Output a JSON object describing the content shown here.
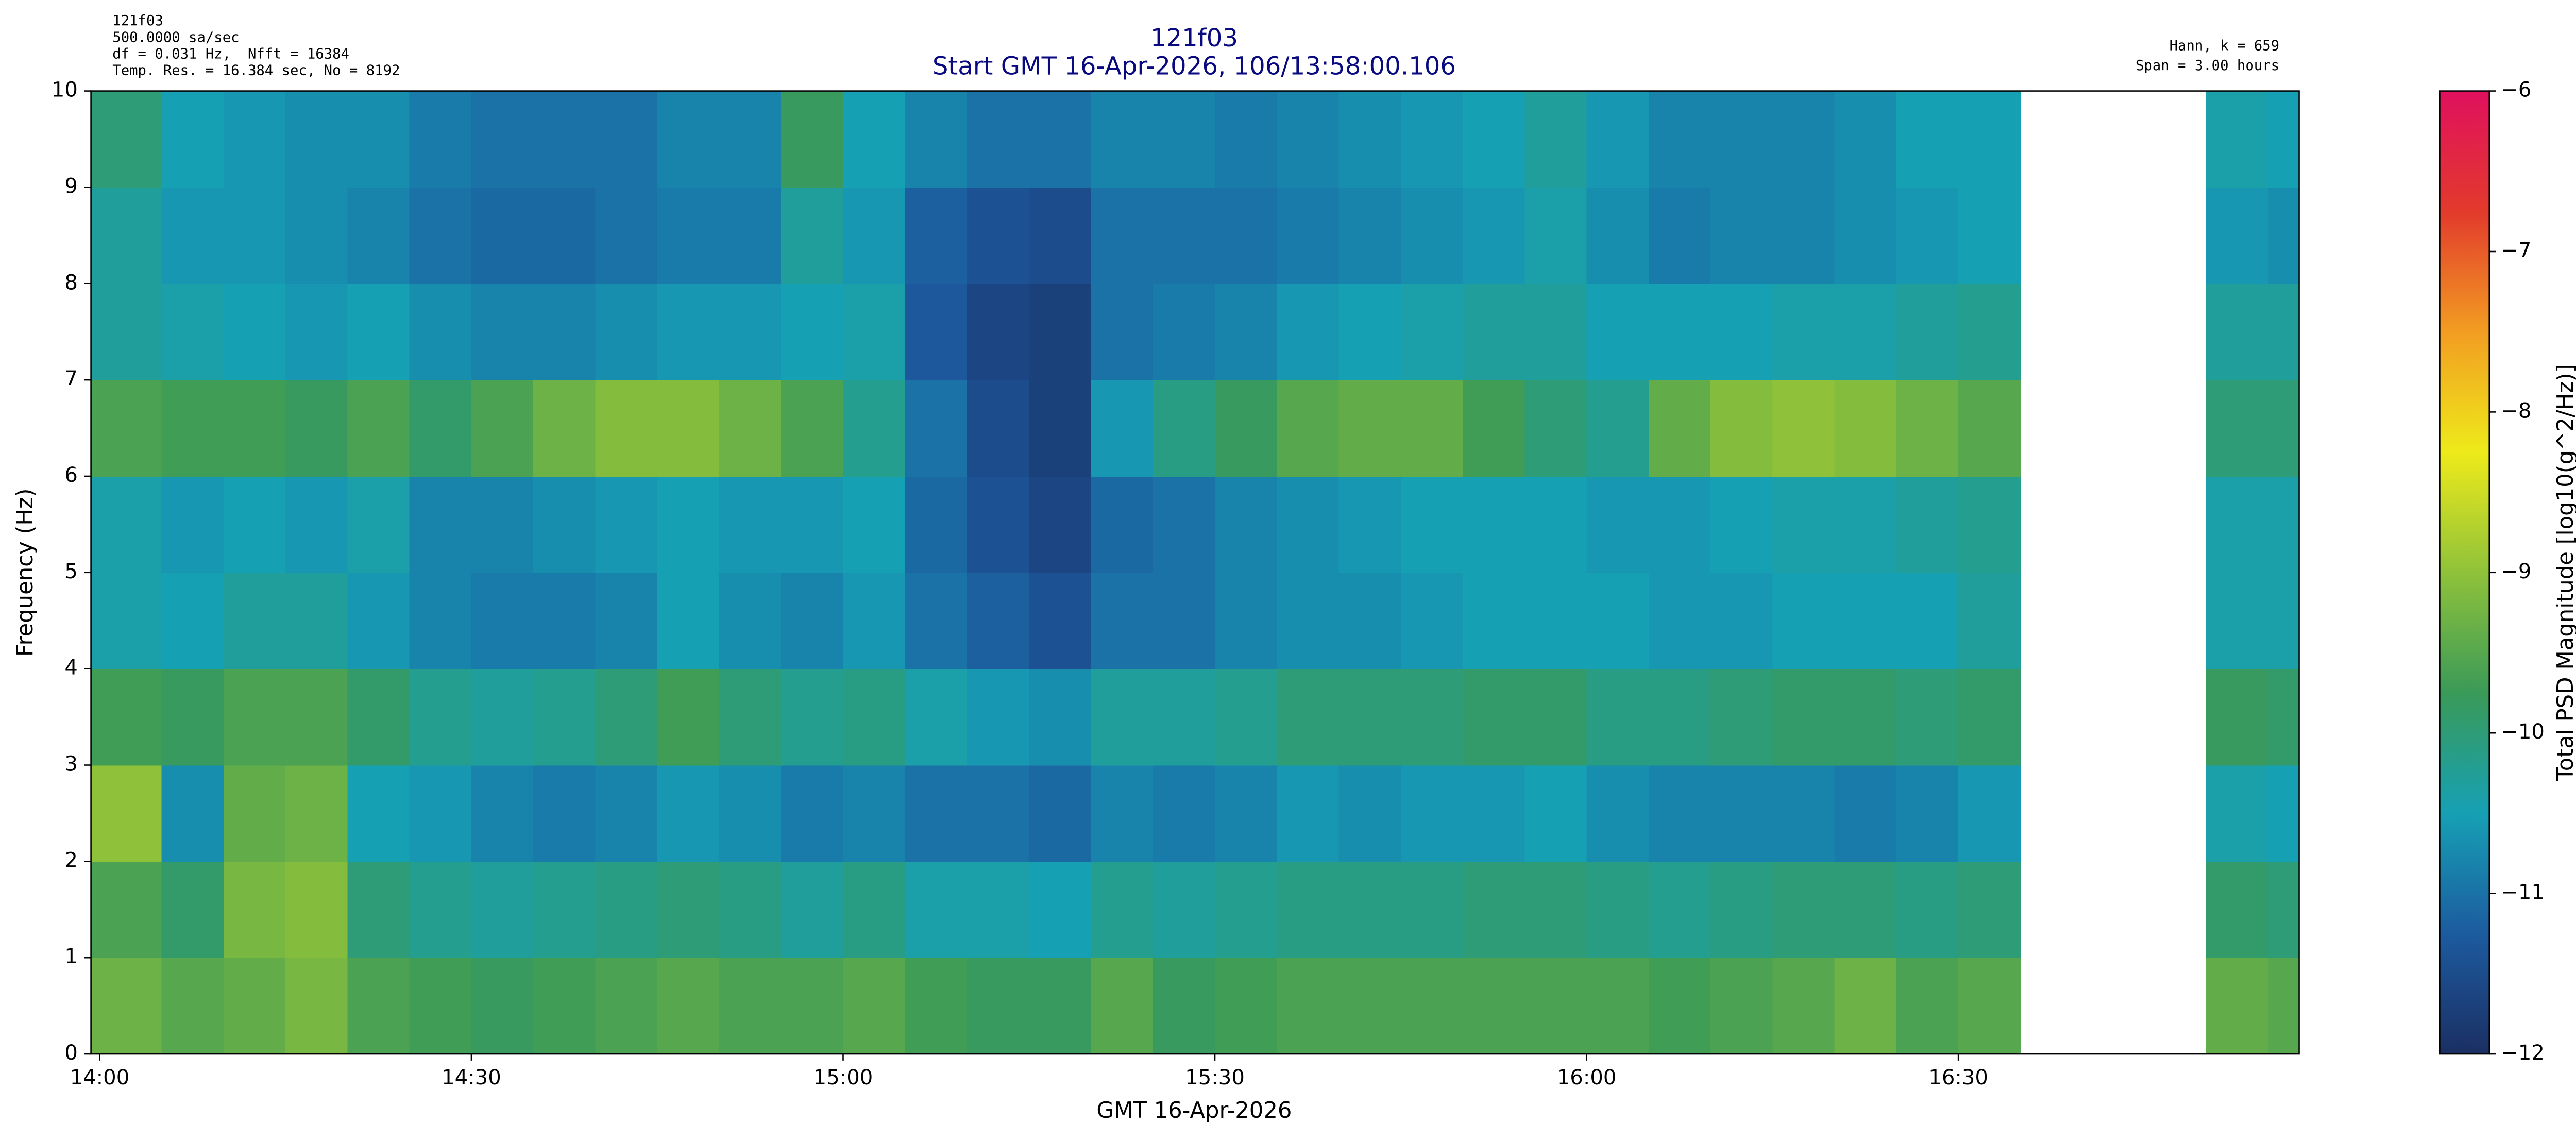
{
  "chart_data": {
    "type": "heatmap",
    "title": "121f03",
    "subtitle": "Start GMT 16-Apr-2026, 106/13:58:00.106",
    "annotations_left": [
      "121f03",
      "500.0000 sa/sec",
      "df = 0.031 Hz,  Nfft = 16384",
      "Temp. Res. = 16.384 sec, No = 8192"
    ],
    "annotations_right": [
      "Hann, k = 659",
      "Span = 3.00 hours"
    ],
    "x_label": "GMT 16-Apr-2026",
    "y_label": "Frequency (Hz)",
    "colorbar_label": "Total PSD Magnitude [log10(g^2/Hz)]",
    "xlim": [
      839.3,
      1017.5
    ],
    "xticks": [
      {
        "value": 840,
        "label": "14:00"
      },
      {
        "value": 870,
        "label": "14:30"
      },
      {
        "value": 900,
        "label": "15:00"
      },
      {
        "value": 930,
        "label": "15:30"
      },
      {
        "value": 960,
        "label": "16:00"
      },
      {
        "value": 990,
        "label": "16:30"
      }
    ],
    "ylim": [
      0,
      10
    ],
    "yticks": [
      0,
      1,
      2,
      3,
      4,
      5,
      6,
      7,
      8,
      9,
      10
    ],
    "zlim": [
      -12,
      -6
    ],
    "zticks": [
      {
        "value": -6,
        "label": "−6"
      },
      {
        "value": -7,
        "label": "−7"
      },
      {
        "value": -8,
        "label": "−8"
      },
      {
        "value": -9,
        "label": "−9"
      },
      {
        "value": -10,
        "label": "−10"
      },
      {
        "value": -11,
        "label": "−11"
      },
      {
        "value": -12,
        "label": "−12"
      }
    ],
    "colorscale": [
      "#1b2f63",
      "#1c5b9f",
      "#16a0b4",
      "#3a9a58",
      "#8fc23a",
      "#eeea1a",
      "#f29d22",
      "#e23a2c",
      "#e0105e"
    ],
    "xbins": [
      839.3,
      845,
      850,
      855,
      860,
      865,
      870,
      875,
      880,
      885,
      890,
      895,
      900,
      905,
      910,
      915,
      920,
      925,
      930,
      935,
      940,
      945,
      950,
      955,
      960,
      965,
      970,
      975,
      980,
      985,
      990,
      995,
      1000,
      1005,
      1010,
      1015,
      1017.5
    ],
    "ybins": [
      0,
      1,
      2,
      3,
      4,
      5,
      6,
      7,
      8,
      9,
      10
    ],
    "z": [
      [
        -9.3,
        -9.6,
        -9.0,
        -9.7,
        -10.4,
        -10.4,
        -9.6,
        -10.3,
        -10.3,
        -10.0
      ],
      [
        -9.5,
        -9.9,
        -10.7,
        -9.8,
        -10.5,
        -10.6,
        -9.7,
        -10.4,
        -10.6,
        -10.5
      ],
      [
        -9.4,
        -9.2,
        -9.4,
        -9.6,
        -10.3,
        -10.5,
        -9.7,
        -10.5,
        -10.6,
        -10.6
      ],
      [
        -9.2,
        -9.1,
        -9.3,
        -9.6,
        -10.3,
        -10.6,
        -9.8,
        -10.6,
        -10.7,
        -10.7
      ],
      [
        -9.6,
        -10.0,
        -10.5,
        -9.9,
        -10.6,
        -10.4,
        -9.6,
        -10.5,
        -10.8,
        -10.7
      ],
      [
        -9.7,
        -10.2,
        -10.6,
        -10.2,
        -10.8,
        -10.8,
        -9.9,
        -10.7,
        -11.0,
        -10.9
      ],
      [
        -9.8,
        -10.3,
        -10.8,
        -10.3,
        -10.9,
        -10.8,
        -9.6,
        -10.8,
        -11.1,
        -11.0
      ],
      [
        -9.7,
        -10.2,
        -10.9,
        -10.2,
        -10.9,
        -10.7,
        -9.3,
        -10.8,
        -11.1,
        -11.0
      ],
      [
        -9.6,
        -10.1,
        -10.8,
        -10.0,
        -10.8,
        -10.6,
        -9.1,
        -10.7,
        -11.0,
        -11.0
      ],
      [
        -9.5,
        -10.0,
        -10.6,
        -9.7,
        -10.5,
        -10.5,
        -9.1,
        -10.6,
        -10.9,
        -10.8
      ],
      [
        -9.6,
        -10.1,
        -10.7,
        -10.0,
        -10.7,
        -10.6,
        -9.3,
        -10.6,
        -10.9,
        -10.8
      ],
      [
        -9.6,
        -10.3,
        -10.9,
        -10.2,
        -10.8,
        -10.6,
        -9.6,
        -10.5,
        -10.3,
        -9.8
      ],
      [
        -9.5,
        -10.1,
        -10.8,
        -10.1,
        -10.6,
        -10.5,
        -10.2,
        -10.4,
        -10.6,
        -10.5
      ],
      [
        -9.7,
        -10.4,
        -11.0,
        -10.4,
        -11.0,
        -11.1,
        -11.0,
        -11.3,
        -11.2,
        -10.8
      ],
      [
        -9.8,
        -10.4,
        -11.0,
        -10.6,
        -11.2,
        -11.4,
        -11.5,
        -11.6,
        -11.4,
        -11.0
      ],
      [
        -9.8,
        -10.5,
        -11.1,
        -10.7,
        -11.4,
        -11.6,
        -11.7,
        -11.7,
        -11.5,
        -11.0
      ],
      [
        -9.5,
        -10.2,
        -10.8,
        -10.3,
        -11.0,
        -11.1,
        -10.6,
        -11.0,
        -11.0,
        -10.8
      ],
      [
        -9.8,
        -10.3,
        -10.9,
        -10.3,
        -11.0,
        -11.0,
        -10.1,
        -10.9,
        -11.0,
        -10.8
      ],
      [
        -9.7,
        -10.2,
        -10.8,
        -10.2,
        -10.8,
        -10.8,
        -9.8,
        -10.8,
        -11.0,
        -10.9
      ],
      [
        -9.6,
        -10.1,
        -10.6,
        -10.0,
        -10.7,
        -10.7,
        -9.5,
        -10.6,
        -10.9,
        -10.8
      ],
      [
        -9.6,
        -10.1,
        -10.7,
        -10.0,
        -10.7,
        -10.6,
        -9.4,
        -10.5,
        -10.8,
        -10.7
      ],
      [
        -9.6,
        -10.1,
        -10.6,
        -10.0,
        -10.6,
        -10.5,
        -9.4,
        -10.4,
        -10.7,
        -10.6
      ],
      [
        -9.6,
        -10.0,
        -10.6,
        -9.9,
        -10.5,
        -10.5,
        -9.7,
        -10.3,
        -10.6,
        -10.5
      ],
      [
        -9.6,
        -10.0,
        -10.5,
        -9.9,
        -10.5,
        -10.5,
        -10.0,
        -10.3,
        -10.4,
        -10.3
      ],
      [
        -9.6,
        -10.1,
        -10.7,
        -10.1,
        -10.5,
        -10.6,
        -10.2,
        -10.5,
        -10.7,
        -10.6
      ],
      [
        -9.7,
        -10.2,
        -10.8,
        -10.1,
        -10.6,
        -10.6,
        -9.4,
        -10.5,
        -10.9,
        -10.8
      ],
      [
        -9.6,
        -10.1,
        -10.8,
        -10.0,
        -10.6,
        -10.5,
        -9.1,
        -10.5,
        -10.8,
        -10.8
      ],
      [
        -9.5,
        -10.0,
        -10.8,
        -9.9,
        -10.5,
        -10.4,
        -9.0,
        -10.4,
        -10.8,
        -10.8
      ],
      [
        -9.3,
        -10.0,
        -10.9,
        -9.9,
        -10.5,
        -10.4,
        -9.1,
        -10.4,
        -10.7,
        -10.7
      ],
      [
        -9.6,
        -10.1,
        -10.8,
        -10.0,
        -10.5,
        -10.3,
        -9.3,
        -10.3,
        -10.6,
        -10.5
      ],
      [
        -9.5,
        -10.0,
        -10.6,
        -9.9,
        -10.3,
        -10.2,
        -9.5,
        -10.2,
        -10.5,
        -10.5
      ],
      null,
      null,
      null,
      [
        -9.4,
        -9.9,
        -10.4,
        -9.8,
        -10.4,
        -10.4,
        -10.0,
        -10.3,
        -10.6,
        -10.4
      ],
      [
        -9.5,
        -10.0,
        -10.5,
        -9.9,
        -10.4,
        -10.4,
        -10.0,
        -10.3,
        -10.7,
        -10.5
      ]
    ]
  }
}
